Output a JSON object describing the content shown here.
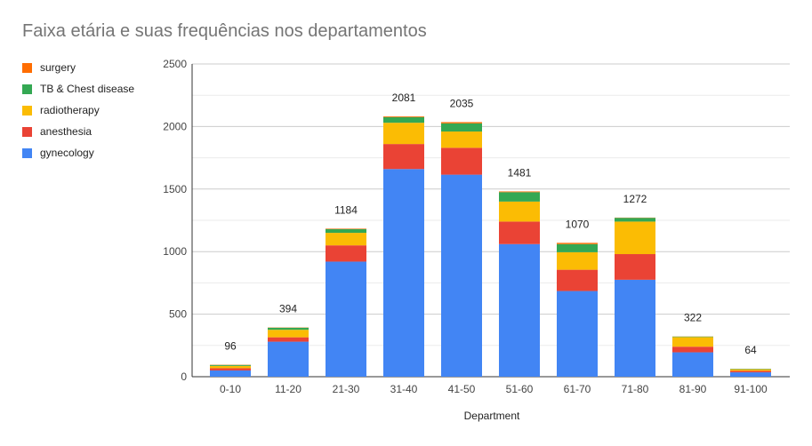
{
  "chart_data": {
    "type": "bar",
    "stacked": true,
    "title": "Faixa etária e suas frequências nos departamentos",
    "xlabel": "Department",
    "ylabel": "",
    "ylim": [
      0,
      2500
    ],
    "y_ticks": [
      0,
      500,
      1000,
      1500,
      2000,
      2500
    ],
    "grid": true,
    "legend_position": "left",
    "categories": [
      "0-10",
      "11-20",
      "21-30",
      "31-40",
      "41-50",
      "51-60",
      "61-70",
      "71-80",
      "81-90",
      "91-100"
    ],
    "series": [
      {
        "name": "gynecology",
        "color": "#4285f4",
        "values": [
          50,
          280,
          920,
          1660,
          1615,
          1060,
          685,
          775,
          195,
          35
        ]
      },
      {
        "name": "anesthesia",
        "color": "#ea4335",
        "values": [
          18,
          35,
          130,
          200,
          215,
          180,
          170,
          205,
          45,
          12
        ]
      },
      {
        "name": "radiotherapy",
        "color": "#fbbc04",
        "values": [
          18,
          60,
          100,
          170,
          130,
          160,
          140,
          260,
          77,
          12
        ]
      },
      {
        "name": "TB & Chest disease",
        "color": "#34a853",
        "values": [
          8,
          17,
          30,
          45,
          65,
          75,
          65,
          30,
          4,
          4
        ]
      },
      {
        "name": "surgery",
        "color": "#ff6d01",
        "values": [
          2,
          2,
          4,
          6,
          10,
          6,
          10,
          2,
          1,
          1
        ]
      }
    ],
    "totals": [
      96,
      394,
      1184,
      2081,
      2035,
      1481,
      1070,
      1272,
      322,
      64
    ]
  }
}
